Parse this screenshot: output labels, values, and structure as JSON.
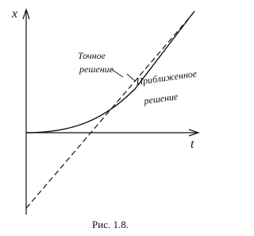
{
  "axes": {
    "y_label": "x",
    "x_label": "t"
  },
  "labels": [
    {
      "lines": [
        "Точное",
        "решение"
      ]
    },
    {
      "lines": [
        "Приближенное",
        "решение"
      ]
    }
  ],
  "caption": "Рис. 1.8."
}
